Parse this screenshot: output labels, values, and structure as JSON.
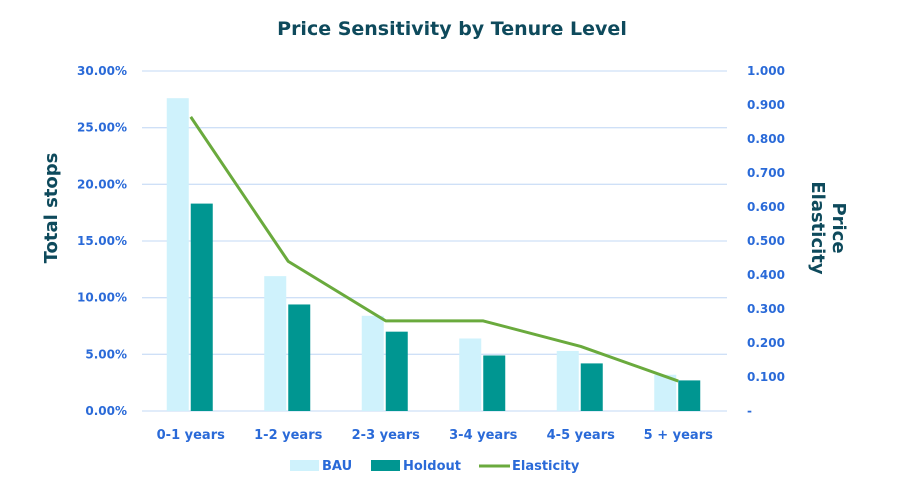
{
  "chart_data": {
    "type": "bar",
    "title": "Price Sensitivity by Tenure Level",
    "categories": [
      "0-1 years",
      "1-2 years",
      "2-3 years",
      "3-4 years",
      "4-5 years",
      "5 + years"
    ],
    "series": [
      {
        "name": "BAU",
        "type": "bar",
        "axis": "left",
        "color": "#cff2fc",
        "values": [
          27.6,
          11.9,
          8.4,
          6.4,
          5.3,
          3.2
        ]
      },
      {
        "name": "Holdout",
        "type": "bar",
        "axis": "left",
        "color": "#009691",
        "values": [
          18.3,
          9.4,
          7.0,
          4.9,
          4.2,
          2.7
        ]
      },
      {
        "name": "Elasticity",
        "type": "line",
        "axis": "right",
        "color": "#6aaa3d",
        "values": [
          0.865,
          0.44,
          0.265,
          0.265,
          0.19,
          0.088
        ]
      }
    ],
    "ylabel": "Total stops",
    "y2label": [
      "Price",
      "Elasticity"
    ],
    "ylim": [
      0,
      30
    ],
    "y2lim": [
      0,
      1
    ],
    "yticks": [
      "0.00%",
      "5.00%",
      "10.00%",
      "15.00%",
      "20.00%",
      "25.00%",
      "30.00%"
    ],
    "y2ticks": [
      "-",
      "0.100",
      "0.200",
      "0.300",
      "0.400",
      "0.500",
      "0.600",
      "0.700",
      "0.800",
      "0.900",
      "1.000"
    ],
    "grid": true,
    "legend_position": "bottom",
    "gridline_color": "#cfe0f7"
  }
}
